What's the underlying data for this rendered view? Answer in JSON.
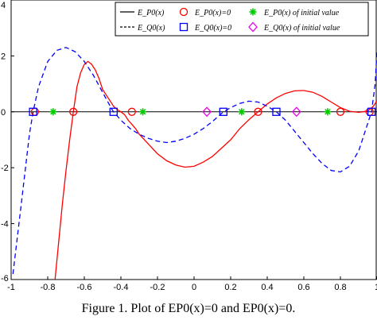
{
  "caption": "Figure 1. Plot of EP0(x)=0 and EP0(x)=0.",
  "colors": {
    "ep0_curve": "#ff0000",
    "eq0_curve": "#0000ff",
    "zero_markers_ep0": "#ff0000",
    "zero_markers_eq0": "#0000ff",
    "initial_ep0": "#00cc00",
    "initial_eq0": "#ee00ee"
  },
  "chart_data": {
    "type": "line",
    "xlim": [
      -1,
      1
    ],
    "ylim": [
      -6,
      4
    ],
    "x_ticks": [
      "-1",
      "-0.8",
      "-0.6",
      "-0.4",
      "-0.2",
      "0",
      "0.2",
      "0.4",
      "0.6",
      "0.8",
      "1"
    ],
    "y_ticks": [
      "4",
      "2",
      "0",
      "-2",
      "-4",
      "-6"
    ],
    "grid": false,
    "legend_position": "top-right",
    "legend": [
      {
        "label": "E_P0(x)",
        "style": "solid-line",
        "color": "#000000"
      },
      {
        "label": "E_P0(x)=0",
        "style": "circle-marker",
        "color": "#ff0000"
      },
      {
        "label": "E_P0(x) of initial value",
        "style": "asterisk-marker",
        "color": "#00cc00"
      },
      {
        "label": "E_Q0(x)",
        "style": "dashed-line",
        "color": "#000000"
      },
      {
        "label": "E_Q0(x)=0",
        "style": "square-marker",
        "color": "#0000ff"
      },
      {
        "label": "E_Q0(x) of initial value",
        "style": "diamond-marker",
        "color": "#ee00ee"
      }
    ],
    "series": [
      {
        "style": "solid",
        "color": "#ff0000",
        "x": [
          -0.76,
          -0.72,
          -0.7,
          -0.68,
          -0.66,
          -0.64,
          -0.62,
          -0.6,
          -0.58,
          -0.56,
          -0.54,
          -0.52,
          -0.5,
          -0.48,
          -0.46,
          -0.44,
          -0.42,
          -0.4,
          -0.38,
          -0.36,
          -0.34,
          -0.32,
          -0.3,
          -0.25,
          -0.2,
          -0.15,
          -0.1,
          -0.05,
          0.0,
          0.05,
          0.1,
          0.15,
          0.2,
          0.25,
          0.3,
          0.35,
          0.4,
          0.45,
          0.5,
          0.55,
          0.6,
          0.65,
          0.7,
          0.75,
          0.8,
          0.85,
          0.9,
          0.95,
          0.98,
          1.0
        ],
        "y": [
          -6.0,
          -3.3,
          -2.1,
          -1.0,
          0.0,
          0.9,
          1.4,
          1.7,
          1.8,
          1.7,
          1.5,
          1.2,
          0.8,
          0.6,
          0.4,
          0.2,
          0.08,
          0.0,
          -0.1,
          -0.3,
          -0.45,
          -0.6,
          -0.8,
          -1.15,
          -1.5,
          -1.75,
          -1.9,
          -1.98,
          -1.95,
          -1.8,
          -1.6,
          -1.3,
          -1.0,
          -0.6,
          -0.28,
          0.0,
          0.28,
          0.5,
          0.66,
          0.75,
          0.76,
          0.7,
          0.55,
          0.35,
          0.15,
          0.02,
          -0.02,
          0.03,
          0.2,
          0.4
        ]
      },
      {
        "style": "dashed",
        "color": "#0000ff",
        "x": [
          -0.99,
          -0.95,
          -0.9,
          -0.88,
          -0.85,
          -0.8,
          -0.75,
          -0.7,
          -0.65,
          -0.6,
          -0.55,
          -0.5,
          -0.45,
          -0.44,
          -0.4,
          -0.35,
          -0.3,
          -0.25,
          -0.2,
          -0.15,
          -0.1,
          -0.05,
          0.0,
          0.05,
          0.1,
          0.16,
          0.2,
          0.25,
          0.3,
          0.35,
          0.4,
          0.45,
          0.5,
          0.55,
          0.6,
          0.65,
          0.7,
          0.75,
          0.8,
          0.85,
          0.9,
          0.95,
          0.97,
          0.99,
          1.0
        ],
        "y": [
          -5.8,
          -3.6,
          -0.8,
          0.0,
          0.9,
          1.8,
          2.2,
          2.3,
          2.15,
          1.8,
          1.3,
          0.7,
          0.1,
          0.0,
          -0.3,
          -0.6,
          -0.8,
          -0.95,
          -1.05,
          -1.1,
          -1.05,
          -0.95,
          -0.8,
          -0.6,
          -0.35,
          0.0,
          0.15,
          0.3,
          0.38,
          0.35,
          0.2,
          0.0,
          -0.3,
          -0.7,
          -1.1,
          -1.5,
          -1.85,
          -2.1,
          -2.15,
          -1.95,
          -1.4,
          -0.4,
          0.0,
          1.0,
          2.2
        ]
      }
    ],
    "markers": {
      "ep0_zeros": {
        "symbol": "circle",
        "color": "#ff0000",
        "x": [
          -0.87,
          -0.66,
          -0.34,
          0.35,
          0.8,
          0.96
        ],
        "y": [
          0,
          0,
          0,
          0,
          0,
          0
        ]
      },
      "eq0_zeros": {
        "symbol": "square",
        "color": "#0000ff",
        "x": [
          -0.88,
          -0.44,
          0.16,
          0.45,
          0.97
        ],
        "y": [
          0,
          0,
          0,
          0,
          0
        ]
      },
      "ep0_initial": {
        "symbol": "asterisk",
        "color": "#00cc00",
        "x": [
          -0.77,
          -0.28,
          0.26,
          0.73
        ],
        "y": [
          0,
          0,
          0,
          0
        ]
      },
      "eq0_initial": {
        "symbol": "diamond",
        "color": "#ee00ee",
        "x": [
          0.07,
          0.56
        ],
        "y": [
          0,
          0
        ]
      }
    }
  }
}
